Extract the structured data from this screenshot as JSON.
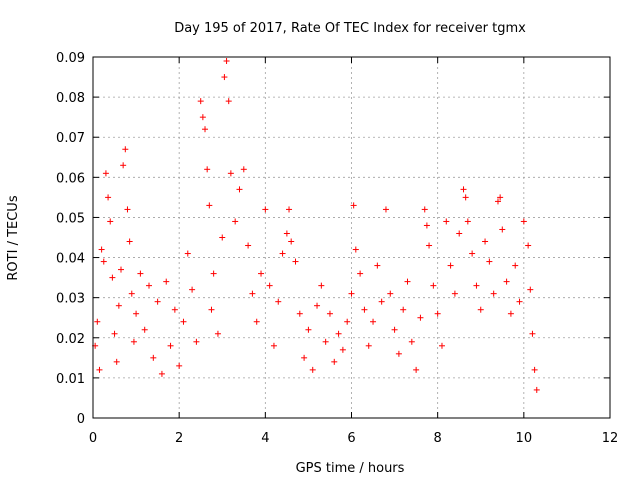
{
  "chart_data": {
    "type": "scatter",
    "title": "Day 195 of 2017, Rate Of TEC Index for receiver tgmx",
    "xlabel": "GPS time / hours",
    "ylabel": "ROTI / TECUs",
    "xlim": [
      0,
      12
    ],
    "ylim": [
      0,
      0.09
    ],
    "xticks": [
      0,
      2,
      4,
      6,
      8,
      10,
      12
    ],
    "xtick_labels": [
      "0",
      "2",
      "4",
      "6",
      "8",
      "10",
      "12"
    ],
    "yticks": [
      0,
      0.01,
      0.02,
      0.03,
      0.04,
      0.05,
      0.06,
      0.07,
      0.08,
      0.09
    ],
    "ytick_labels": [
      "0",
      "0.01",
      "0.02",
      "0.03",
      "0.04",
      "0.05",
      "0.06",
      "0.07",
      "0.08",
      "0.09"
    ],
    "grid": true,
    "marker": "+",
    "color": "#ff0000",
    "series": [
      {
        "name": "ROTI",
        "points": [
          [
            0.05,
            0.018
          ],
          [
            0.1,
            0.024
          ],
          [
            0.15,
            0.012
          ],
          [
            0.2,
            0.042
          ],
          [
            0.25,
            0.039
          ],
          [
            0.3,
            0.061
          ],
          [
            0.35,
            0.055
          ],
          [
            0.4,
            0.049
          ],
          [
            0.45,
            0.035
          ],
          [
            0.5,
            0.021
          ],
          [
            0.55,
            0.014
          ],
          [
            0.6,
            0.028
          ],
          [
            0.65,
            0.037
          ],
          [
            0.7,
            0.063
          ],
          [
            0.75,
            0.067
          ],
          [
            0.8,
            0.052
          ],
          [
            0.85,
            0.044
          ],
          [
            0.9,
            0.031
          ],
          [
            0.95,
            0.019
          ],
          [
            1.0,
            0.026
          ],
          [
            1.1,
            0.036
          ],
          [
            1.2,
            0.022
          ],
          [
            1.3,
            0.033
          ],
          [
            1.4,
            0.015
          ],
          [
            1.5,
            0.029
          ],
          [
            1.6,
            0.011
          ],
          [
            1.7,
            0.034
          ],
          [
            1.8,
            0.018
          ],
          [
            1.9,
            0.027
          ],
          [
            2.0,
            0.013
          ],
          [
            2.1,
            0.024
          ],
          [
            2.2,
            0.041
          ],
          [
            2.3,
            0.032
          ],
          [
            2.4,
            0.019
          ],
          [
            2.5,
            0.079
          ],
          [
            2.55,
            0.075
          ],
          [
            2.6,
            0.072
          ],
          [
            2.65,
            0.062
          ],
          [
            2.7,
            0.053
          ],
          [
            2.75,
            0.027
          ],
          [
            2.8,
            0.036
          ],
          [
            2.9,
            0.021
          ],
          [
            3.0,
            0.045
          ],
          [
            3.05,
            0.085
          ],
          [
            3.1,
            0.089
          ],
          [
            3.15,
            0.079
          ],
          [
            3.2,
            0.061
          ],
          [
            3.3,
            0.049
          ],
          [
            3.4,
            0.057
          ],
          [
            3.5,
            0.062
          ],
          [
            3.6,
            0.043
          ],
          [
            3.7,
            0.031
          ],
          [
            3.8,
            0.024
          ],
          [
            3.9,
            0.036
          ],
          [
            4.0,
            0.052
          ],
          [
            4.1,
            0.033
          ],
          [
            4.2,
            0.018
          ],
          [
            4.3,
            0.029
          ],
          [
            4.4,
            0.041
          ],
          [
            4.5,
            0.046
          ],
          [
            4.55,
            0.052
          ],
          [
            4.6,
            0.044
          ],
          [
            4.7,
            0.039
          ],
          [
            4.8,
            0.026
          ],
          [
            4.9,
            0.015
          ],
          [
            5.0,
            0.022
          ],
          [
            5.1,
            0.012
          ],
          [
            5.2,
            0.028
          ],
          [
            5.3,
            0.033
          ],
          [
            5.4,
            0.019
          ],
          [
            5.5,
            0.026
          ],
          [
            5.6,
            0.014
          ],
          [
            5.7,
            0.021
          ],
          [
            5.8,
            0.017
          ],
          [
            5.9,
            0.024
          ],
          [
            6.0,
            0.031
          ],
          [
            6.05,
            0.053
          ],
          [
            6.1,
            0.042
          ],
          [
            6.2,
            0.036
          ],
          [
            6.3,
            0.027
          ],
          [
            6.4,
            0.018
          ],
          [
            6.5,
            0.024
          ],
          [
            6.6,
            0.038
          ],
          [
            6.7,
            0.029
          ],
          [
            6.8,
            0.052
          ],
          [
            6.9,
            0.031
          ],
          [
            7.0,
            0.022
          ],
          [
            7.1,
            0.016
          ],
          [
            7.2,
            0.027
          ],
          [
            7.3,
            0.034
          ],
          [
            7.4,
            0.019
          ],
          [
            7.5,
            0.012
          ],
          [
            7.6,
            0.025
          ],
          [
            7.7,
            0.052
          ],
          [
            7.75,
            0.048
          ],
          [
            7.8,
            0.043
          ],
          [
            7.9,
            0.033
          ],
          [
            8.0,
            0.026
          ],
          [
            8.1,
            0.018
          ],
          [
            8.2,
            0.049
          ],
          [
            8.3,
            0.038
          ],
          [
            8.4,
            0.031
          ],
          [
            8.5,
            0.046
          ],
          [
            8.6,
            0.057
          ],
          [
            8.65,
            0.055
          ],
          [
            8.7,
            0.049
          ],
          [
            8.8,
            0.041
          ],
          [
            8.9,
            0.033
          ],
          [
            9.0,
            0.027
          ],
          [
            9.1,
            0.044
          ],
          [
            9.2,
            0.039
          ],
          [
            9.3,
            0.031
          ],
          [
            9.4,
            0.054
          ],
          [
            9.45,
            0.055
          ],
          [
            9.5,
            0.047
          ],
          [
            9.6,
            0.034
          ],
          [
            9.7,
            0.026
          ],
          [
            9.8,
            0.038
          ],
          [
            9.9,
            0.029
          ],
          [
            10.0,
            0.049
          ],
          [
            10.1,
            0.043
          ],
          [
            10.15,
            0.032
          ],
          [
            10.2,
            0.021
          ],
          [
            10.25,
            0.012
          ],
          [
            10.3,
            0.007
          ]
        ]
      }
    ]
  }
}
